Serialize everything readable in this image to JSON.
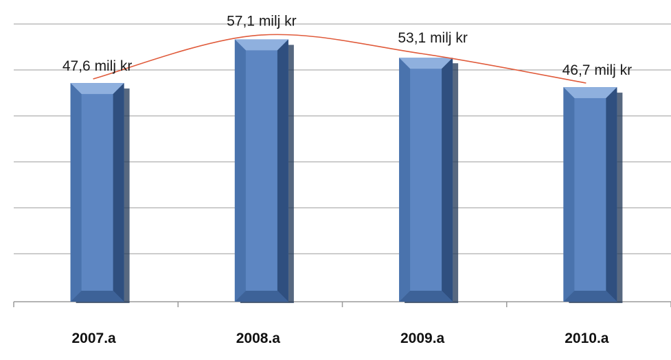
{
  "chart_data": {
    "type": "bar",
    "title": "",
    "xlabel": "",
    "ylabel": "",
    "categories": [
      "2007.a",
      "2008.a",
      "2009.a",
      "2010.a"
    ],
    "values": [
      47.6,
      57.1,
      53.1,
      46.7
    ],
    "data_labels": [
      "47,6 milj kr",
      "57,1 milj kr",
      "53,1 milj kr",
      "46,7 milj kr"
    ],
    "ylim": [
      0,
      60
    ],
    "gridlines": true,
    "trendline": true,
    "colors": {
      "bar_face": "#5d86c2",
      "bar_edge_light": "#8fb0de",
      "bar_edge_dark": "#2f4f7f",
      "shadow": "#1f3556",
      "trendline": "#e05a3a",
      "grid": "#9a9a9a"
    }
  }
}
